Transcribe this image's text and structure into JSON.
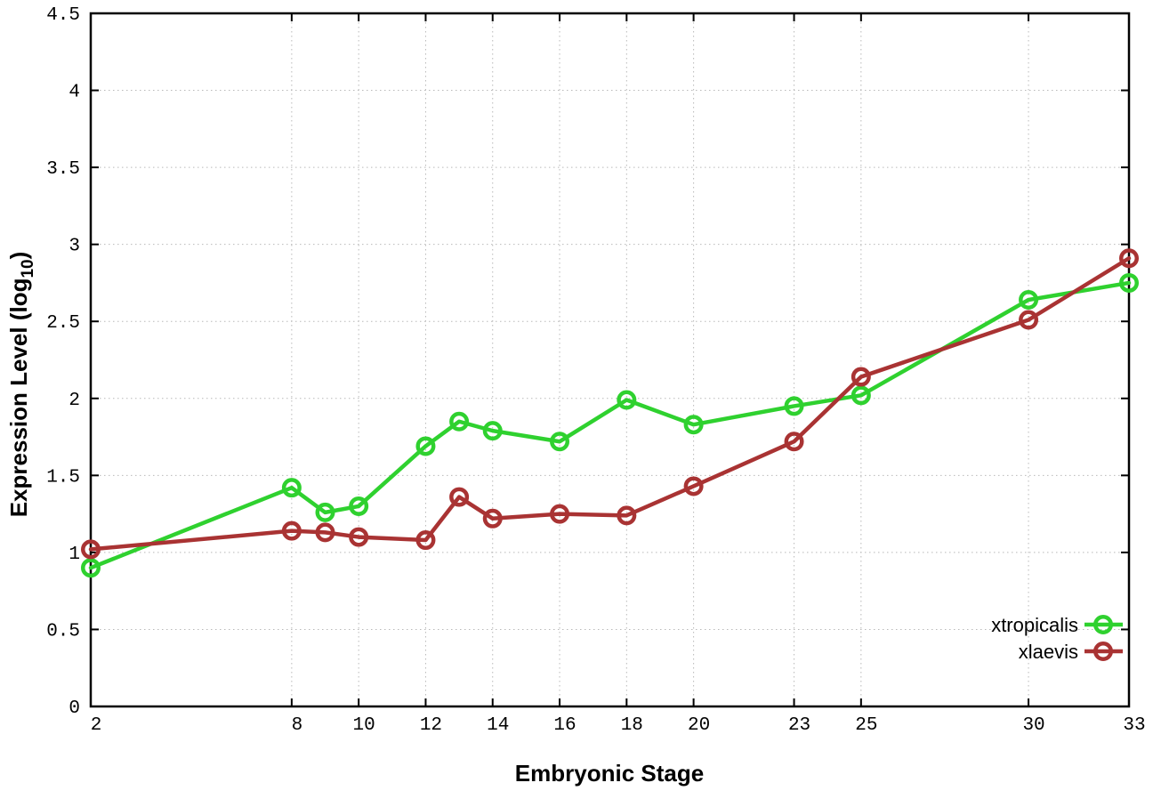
{
  "chart_data": {
    "type": "line",
    "title": "",
    "xlabel": "Embryonic Stage",
    "ylabel": "Expression Level (log10)",
    "ylabel_parts": {
      "prefix": "Expression Level (log",
      "sub": "10",
      "suffix": ")"
    },
    "xlim": [
      2,
      33
    ],
    "ylim": [
      0,
      4.5
    ],
    "grid": true,
    "grid_style": "dotted",
    "legend_position": "inside-bottom-right",
    "xtick_values": [
      2,
      8,
      10,
      12,
      14,
      16,
      18,
      20,
      23,
      25,
      30,
      33
    ],
    "xtick_labels": [
      "2",
      "8",
      "10",
      "12",
      "14",
      "16",
      "18",
      "20",
      "23",
      "25",
      "30",
      "33"
    ],
    "ytick_values": [
      0,
      0.5,
      1,
      1.5,
      2,
      2.5,
      3,
      3.5,
      4,
      4.5
    ],
    "ytick_labels": [
      "0",
      "0.5",
      "1",
      "1.5",
      "2",
      "2.5",
      "3",
      "3.5",
      "4",
      "4.5"
    ],
    "x": [
      2,
      8,
      9,
      10,
      12,
      13,
      14,
      16,
      18,
      20,
      23,
      25,
      30,
      33
    ],
    "series": [
      {
        "name": "xtropicalis",
        "color": "#2fd12f",
        "marker": "open-circle",
        "values": [
          0.9,
          1.42,
          1.26,
          1.3,
          1.69,
          1.85,
          1.79,
          1.72,
          1.99,
          1.83,
          1.95,
          2.02,
          2.64,
          2.75
        ]
      },
      {
        "name": "xlaevis",
        "color": "#a93333",
        "marker": "open-circle",
        "values": [
          1.02,
          1.14,
          1.13,
          1.1,
          1.08,
          1.36,
          1.22,
          1.25,
          1.24,
          1.43,
          1.72,
          2.14,
          2.51,
          2.91
        ]
      }
    ],
    "colors": {
      "background": "#ffffff",
      "border": "#000000",
      "grid": "#b9b9b9",
      "text": "#000000"
    }
  }
}
